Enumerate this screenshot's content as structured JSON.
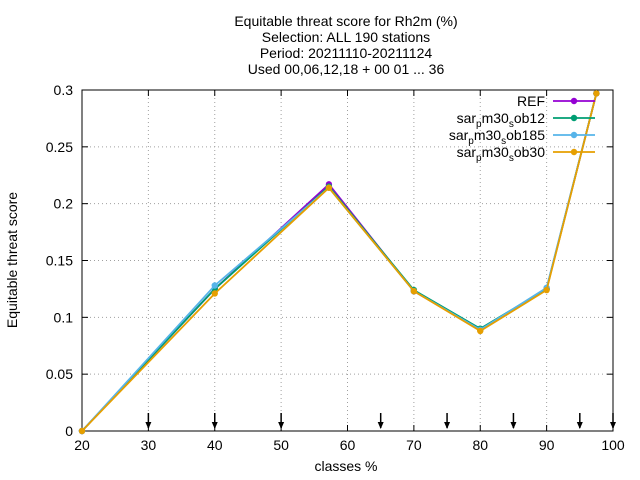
{
  "chart_data": {
    "type": "line",
    "title_lines": [
      "Equitable threat score  for Rh2m (%)",
      "Selection: ALL    190 stations",
      "Period: 20211110-20211124",
      "Used 00,06,12,18 + 00 01 ... 36"
    ],
    "xlabel": "classes %",
    "ylabel": "Equitable threat score",
    "xlim": [
      20,
      100
    ],
    "ylim": [
      0,
      0.3
    ],
    "xticks": [
      20,
      30,
      40,
      50,
      60,
      70,
      80,
      90,
      100
    ],
    "xtick_labels": [
      "20",
      "30",
      "40",
      "50",
      "60",
      "70",
      "80",
      "90",
      "100"
    ],
    "yticks": [
      0,
      0.05,
      0.1,
      0.15,
      0.2,
      0.25,
      0.3
    ],
    "ytick_labels": [
      "0",
      "0.05",
      "0.1",
      "0.15",
      "0.2",
      "0.25",
      "0.3"
    ],
    "grid": true,
    "legend_position": "top-right",
    "arrow_markers_x": [
      30,
      40,
      50,
      65,
      75,
      85,
      95,
      100
    ],
    "series": [
      {
        "name": "REF",
        "legend": {
          "base": "REF",
          "sub": "",
          "mid": "",
          "sub2": "",
          "tail": ""
        },
        "color": "#9400d3",
        "x": [
          20,
          40,
          57.2,
          70,
          80,
          90,
          97.5
        ],
        "y": [
          0,
          0.125,
          0.217,
          0.123,
          0.089,
          0.125,
          0.297
        ]
      },
      {
        "name": "sar_pm30_sob12",
        "legend": {
          "base": "sar",
          "sub": "p",
          "mid": "m30",
          "sub2": "s",
          "tail": "ob12"
        },
        "color": "#009e73",
        "x": [
          20,
          40,
          57.2,
          70,
          80,
          90,
          97.5
        ],
        "y": [
          0,
          0.125,
          0.215,
          0.124,
          0.09,
          0.125,
          0.297
        ]
      },
      {
        "name": "sar_pm30_sob185",
        "legend": {
          "base": "sar",
          "sub": "p",
          "mid": "m30",
          "sub2": "s",
          "tail": "ob185"
        },
        "color": "#56b4e9",
        "x": [
          20,
          40,
          57.2,
          70,
          80,
          90,
          97.5
        ],
        "y": [
          0,
          0.128,
          0.214,
          0.123,
          0.089,
          0.126,
          0.297
        ]
      },
      {
        "name": "sar_pm30_sob30",
        "legend": {
          "base": "sar",
          "sub": "p",
          "mid": "m30",
          "sub2": "s",
          "tail": "ob30"
        },
        "color": "#e69f00",
        "x": [
          20,
          40,
          57.2,
          70,
          80,
          90,
          97.5
        ],
        "y": [
          0,
          0.121,
          0.214,
          0.123,
          0.088,
          0.124,
          0.297
        ]
      }
    ]
  }
}
